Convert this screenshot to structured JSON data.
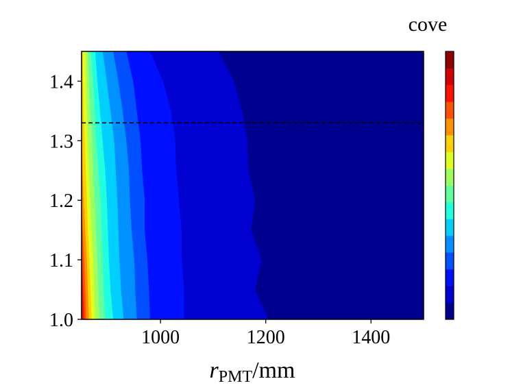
{
  "chart_data": {
    "type": "heatmap",
    "subtype": "filled-contour",
    "xlabel_main": "r",
    "xlabel_sub": "PMT",
    "xlabel_unit": "/mm",
    "ylabel": "",
    "xlim": [
      850,
      1500
    ],
    "ylim": [
      1.0,
      1.45
    ],
    "x_ticks": [
      1000,
      1200,
      1400
    ],
    "y_ticks": [
      1.0,
      1.1,
      1.2,
      1.3,
      1.4
    ],
    "y_tick_labels": [
      "1.0",
      "1.1",
      "1.2",
      "1.3",
      "1.4"
    ],
    "reference_line": {
      "y": 1.33,
      "style": "dashed",
      "color": "#000000"
    },
    "colorbar": {
      "title": "cove",
      "levels": 16,
      "colors": [
        "#00008f",
        "#0000d0",
        "#0010ff",
        "#0050ff",
        "#0090ff",
        "#00d0ff",
        "#20ffdf",
        "#60ff9f",
        "#9fff60",
        "#dfff20",
        "#ffd000",
        "#ff9000",
        "#ff5000",
        "#ff1000",
        "#d00000",
        "#8f0000"
      ]
    },
    "y_grid": [
      1.0,
      1.05,
      1.1,
      1.15,
      1.2,
      1.25,
      1.3,
      1.35,
      1.4,
      1.45
    ],
    "contour_boundaries": [
      {
        "level": 1,
        "x": [
          1205,
          1180,
          1192,
          1172,
          1180,
          1167,
          1165,
          1155,
          1140,
          1110
        ]
      },
      {
        "level": 2,
        "x": [
          1045,
          1045,
          1040,
          1040,
          1035,
          1030,
          1028,
          1020,
          1005,
          980
        ]
      },
      {
        "level": 3,
        "x": [
          980,
          978,
          975,
          970,
          970,
          965,
          962,
          955,
          948,
          935
        ]
      },
      {
        "level": 4,
        "x": [
          955,
          952,
          950,
          945,
          942,
          940,
          935,
          928,
          920,
          910
        ]
      },
      {
        "level": 5,
        "x": [
          930,
          925,
          922,
          920,
          918,
          915,
          912,
          905,
          898,
          890
        ]
      },
      {
        "level": 6,
        "x": [
          910,
          905,
          902,
          900,
          898,
          895,
          890,
          885,
          880,
          876
        ]
      },
      {
        "level": 7,
        "x": [
          895,
          892,
          890,
          888,
          886,
          882,
          878,
          875,
          872,
          868
        ]
      },
      {
        "level": 8,
        "x": [
          885,
          882,
          880,
          877,
          875,
          872,
          870,
          866,
          864,
          862
        ]
      },
      {
        "level": 9,
        "x": [
          876,
          874,
          872,
          869,
          866,
          864,
          862,
          860,
          859,
          858
        ]
      },
      {
        "level": 10,
        "x": [
          869,
          867,
          865,
          862,
          860,
          858,
          856,
          854,
          853,
          852
        ]
      },
      {
        "level": 11,
        "x": [
          864,
          862,
          860,
          857,
          854,
          852,
          851,
          850,
          850,
          850
        ]
      },
      {
        "level": 12,
        "x": [
          859,
          857,
          855,
          852,
          850,
          850,
          850,
          850,
          850,
          850
        ]
      },
      {
        "level": 13,
        "x": [
          855,
          853,
          851,
          850,
          850,
          850,
          850,
          850,
          850,
          850
        ]
      }
    ]
  }
}
